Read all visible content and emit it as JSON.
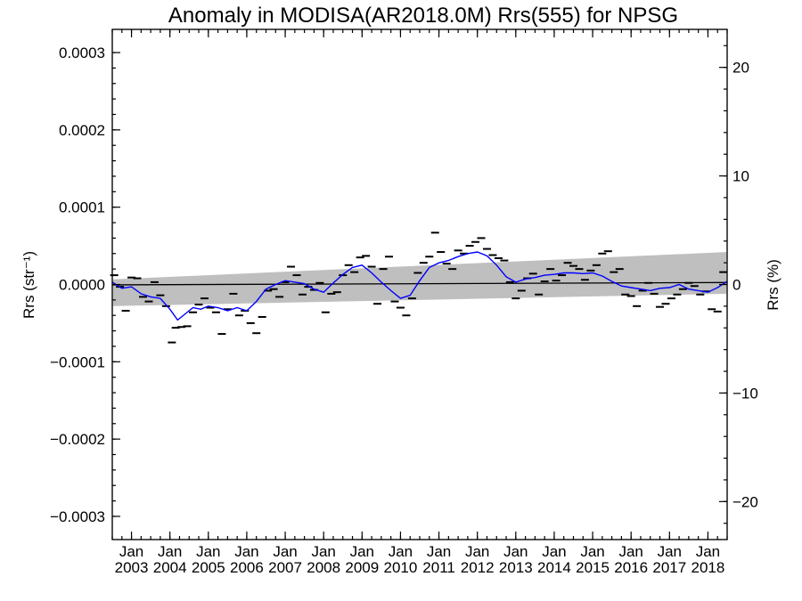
{
  "chart_data": {
    "type": "line",
    "title": "Anomaly in MODISA(AR2018.0M) Rrs(555) for NPSG",
    "ylabel_left": "Rrs (str⁻¹)",
    "ylabel_right": "Rrs (%)",
    "xlabel": "",
    "xlim": [
      2002.5,
      2018.5
    ],
    "ylim": [
      -0.00033,
      0.00033
    ],
    "ylim_right": [
      -23.5,
      23.5
    ],
    "grid": false,
    "x_tick_years": [
      2003,
      2004,
      2005,
      2006,
      2007,
      2008,
      2009,
      2010,
      2011,
      2012,
      2013,
      2014,
      2015,
      2016,
      2017,
      2018
    ],
    "x_tick_month_label": "Jan",
    "y_ticks_left": [
      {
        "value": 0.0003,
        "label": "0.0003"
      },
      {
        "value": 0.0002,
        "label": "0.0002"
      },
      {
        "value": 0.0001,
        "label": "0.0001"
      },
      {
        "value": 0.0,
        "label": "0.0000"
      },
      {
        "value": -0.0001,
        "label": "−0.0001"
      },
      {
        "value": -0.0002,
        "label": "−0.0002"
      },
      {
        "value": -0.0003,
        "label": "−0.0003"
      }
    ],
    "y_ticks_right": [
      {
        "value": 20,
        "label": "20"
      },
      {
        "value": 10,
        "label": "10"
      },
      {
        "value": 0,
        "label": "0"
      },
      {
        "value": -10,
        "label": "−10"
      },
      {
        "value": -20,
        "label": "−20"
      }
    ],
    "trend_line": {
      "x": [
        2002.5,
        2018.5
      ],
      "y": [
        -5e-07,
        2.5e-06
      ],
      "color": "#000000"
    },
    "confidence_band": {
      "x": [
        2002.5,
        2018.5
      ],
      "upper": [
        6.5e-06,
        4.2e-05
      ],
      "lower": [
        -2.8e-05,
        -1.2e-05
      ],
      "color": "#bfbfbf"
    },
    "smoothed_series": {
      "color": "#0000ff",
      "x": [
        2002.5,
        2002.75,
        2003.0,
        2003.25,
        2003.5,
        2003.75,
        2004.0,
        2004.2,
        2004.4,
        2004.6,
        2004.8,
        2005.0,
        2005.25,
        2005.5,
        2005.75,
        2006.0,
        2006.25,
        2006.5,
        2006.75,
        2007.0,
        2007.25,
        2007.5,
        2007.75,
        2008.0,
        2008.25,
        2008.5,
        2008.75,
        2009.0,
        2009.25,
        2009.5,
        2009.75,
        2010.0,
        2010.25,
        2010.5,
        2010.75,
        2011.0,
        2011.25,
        2011.5,
        2011.75,
        2012.0,
        2012.25,
        2012.5,
        2012.75,
        2013.0,
        2013.25,
        2013.5,
        2013.75,
        2014.0,
        2014.25,
        2014.5,
        2014.75,
        2015.0,
        2015.25,
        2015.5,
        2015.75,
        2016.0,
        2016.25,
        2016.5,
        2016.75,
        2017.0,
        2017.25,
        2017.5,
        2017.75,
        2018.0,
        2018.25,
        2018.5
      ],
      "y": [
        3e-06,
        -5e-06,
        -3e-06,
        -1.2e-05,
        -1.6e-05,
        -1.8e-05,
        -3.2e-05,
        -4.6e-05,
        -3.8e-05,
        -3e-05,
        -3.2e-05,
        -2.8e-05,
        -3e-05,
        -3.4e-05,
        -3e-05,
        -3.4e-05,
        -2.2e-05,
        -6e-06,
        0.0,
        5e-06,
        3e-06,
        1e-06,
        -6e-06,
        -1e-05,
        2e-06,
        1.3e-05,
        2.2e-05,
        2.5e-05,
        1.5e-05,
        3e-06,
        -8e-06,
        -1.8e-05,
        -1.4e-05,
        5e-06,
        2.2e-05,
        2.8e-05,
        3.1e-05,
        3.6e-05,
        4e-05,
        4.2e-05,
        3.7e-05,
        2.5e-05,
        1e-05,
        3e-06,
        7e-06,
        9e-06,
        1.2e-05,
        1.3e-05,
        1.5e-05,
        1.5e-05,
        1.4e-05,
        1.5e-05,
        1.1e-05,
        4e-06,
        -2e-06,
        -4e-06,
        -6e-06,
        -8e-06,
        -5e-06,
        -4e-06,
        0.0,
        -6e-06,
        -8e-06,
        -1e-05,
        -4e-06,
        4e-06
      ]
    },
    "monthly_points": {
      "marker": "dash",
      "color": "#000000",
      "x": [
        2002.55,
        2002.7,
        2002.85,
        2003.0,
        2003.15,
        2003.3,
        2003.45,
        2003.6,
        2003.75,
        2003.9,
        2004.05,
        2004.15,
        2004.3,
        2004.45,
        2004.6,
        2004.75,
        2004.9,
        2005.05,
        2005.2,
        2005.35,
        2005.5,
        2005.65,
        2005.8,
        2005.95,
        2006.1,
        2006.25,
        2006.4,
        2006.55,
        2006.7,
        2006.85,
        2007.0,
        2007.15,
        2007.3,
        2007.45,
        2007.6,
        2007.75,
        2007.9,
        2008.05,
        2008.2,
        2008.35,
        2008.5,
        2008.65,
        2008.8,
        2008.95,
        2009.1,
        2009.25,
        2009.4,
        2009.55,
        2009.7,
        2009.85,
        2010.0,
        2010.15,
        2010.3,
        2010.45,
        2010.6,
        2010.75,
        2010.9,
        2011.05,
        2011.2,
        2011.35,
        2011.5,
        2011.65,
        2011.8,
        2011.95,
        2012.1,
        2012.25,
        2012.4,
        2012.55,
        2012.7,
        2012.85,
        2013.0,
        2013.15,
        2013.3,
        2013.45,
        2013.6,
        2013.75,
        2013.9,
        2014.05,
        2014.2,
        2014.35,
        2014.5,
        2014.65,
        2014.8,
        2014.95,
        2015.1,
        2015.25,
        2015.4,
        2015.55,
        2015.7,
        2015.85,
        2016.0,
        2016.15,
        2016.3,
        2016.45,
        2016.6,
        2016.75,
        2016.9,
        2017.05,
        2017.2,
        2017.35,
        2017.5,
        2017.65,
        2017.8,
        2017.95,
        2018.1,
        2018.25,
        2018.4
      ],
      "y": [
        1.2e-05,
        -3e-06,
        -3.4e-05,
        9e-06,
        8e-06,
        -1.6e-05,
        -2.2e-05,
        3e-06,
        -1.4e-05,
        -2.8e-05,
        -7.5e-05,
        -5.6e-05,
        -5.5e-05,
        -5.4e-05,
        -3.6e-05,
        -2.6e-05,
        -1.8e-05,
        -3e-05,
        -3.6e-05,
        -6.4e-05,
        -3.2e-05,
        -1.2e-05,
        -4e-05,
        -3.4e-05,
        -5e-05,
        -6.3e-05,
        -4.2e-05,
        -8e-06,
        -6e-06,
        -1.6e-05,
        3e-06,
        2.3e-05,
        1.2e-05,
        -1.3e-05,
        -3e-06,
        -7e-06,
        2e-06,
        -3.6e-05,
        -1.2e-05,
        -1e-05,
        1.2e-05,
        2.5e-05,
        1.6e-05,
        3.5e-05,
        3.7e-05,
        2.3e-05,
        -2.5e-05,
        2e-05,
        3.6e-05,
        -2.2e-05,
        -3e-05,
        -4e-05,
        -1.8e-05,
        1.5e-05,
        2.8e-05,
        3.6e-05,
        6.7e-05,
        4.2e-05,
        2.7e-05,
        2e-05,
        4.4e-05,
        4e-05,
        5e-05,
        5.5e-05,
        6e-05,
        4.6e-05,
        3.8e-05,
        3.4e-05,
        3.1e-05,
        3e-06,
        -1.8e-05,
        -8e-06,
        8e-06,
        1.4e-05,
        -1.3e-05,
        4e-06,
        2e-05,
        5e-06,
        1.2e-05,
        2.8e-05,
        2.4e-05,
        2e-05,
        6e-06,
        1.8e-05,
        2.5e-05,
        4e-05,
        4.3e-05,
        1.6e-05,
        2e-05,
        -1.3e-05,
        -1.5e-05,
        -2.8e-05,
        -8e-06,
        2e-06,
        -1.2e-05,
        -2.9e-05,
        -2.5e-05,
        -1.8e-05,
        -1.3e-05,
        -6e-06,
        2e-06,
        -2e-06,
        -1.3e-05,
        -9e-06,
        -3.2e-05,
        -3.5e-05,
        1.6e-05
      ]
    }
  }
}
